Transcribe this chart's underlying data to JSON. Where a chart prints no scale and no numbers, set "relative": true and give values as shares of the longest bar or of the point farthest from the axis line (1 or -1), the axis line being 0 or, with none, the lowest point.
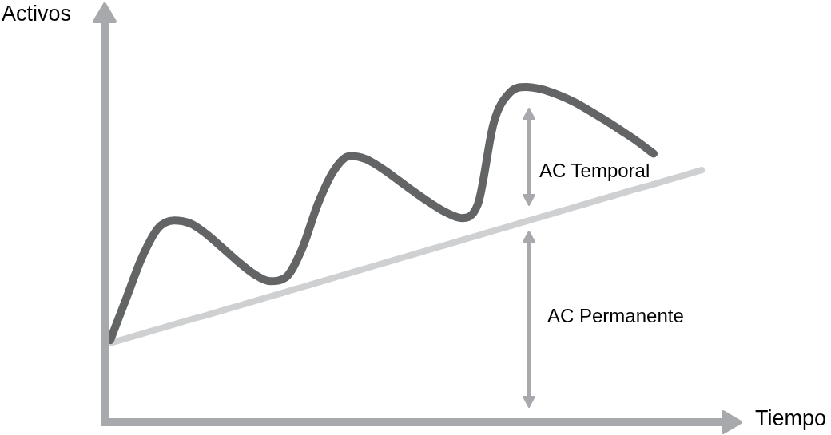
{
  "chart_data": {
    "type": "line",
    "relative": true,
    "xlabel": "Tiempo",
    "ylabel": "Activos",
    "annotations": [
      "AC Temporal",
      "AC Permanente"
    ],
    "marker": "none",
    "categories": [
      null,
      null,
      null,
      null,
      null,
      null,
      null,
      null,
      null,
      null,
      null,
      null,
      null,
      null,
      null,
      null,
      null,
      null,
      null,
      null,
      null,
      null,
      null,
      null,
      null,
      null,
      null,
      null,
      null,
      null,
      null,
      null,
      null,
      null,
      null,
      null,
      null,
      null
    ],
    "series": [
      {
        "color": "#636466",
        "values": [
          0.245,
          0.369,
          0.493,
          0.579,
          0.602,
          0.593,
          0.562,
          0.521,
          0.479,
          0.442,
          0.421,
          0.433,
          0.517,
          0.652,
          0.751,
          0.794,
          0.785,
          0.757,
          0.723,
          0.688,
          0.655,
          0.626,
          0.609,
          0.65,
          0.894,
          0.983,
          1.0,
          0.993,
          0.977,
          0.956,
          0.929,
          0.9,
          0.869,
          0.837,
          0.801,
          null,
          null,
          null
        ]
      },
      {
        "color": "#cfd0d2",
        "values": [
          0.236,
          0.25,
          0.264,
          0.278,
          0.292,
          0.306,
          0.319,
          0.333,
          0.347,
          0.361,
          0.375,
          0.389,
          0.403,
          0.417,
          0.431,
          0.445,
          0.459,
          0.473,
          0.487,
          0.501,
          0.515,
          0.529,
          0.543,
          0.557,
          0.571,
          0.585,
          0.599,
          0.613,
          0.627,
          0.641,
          0.655,
          0.669,
          0.683,
          0.697,
          0.71,
          0.724,
          0.738,
          0.752
        ]
      }
    ]
  }
}
